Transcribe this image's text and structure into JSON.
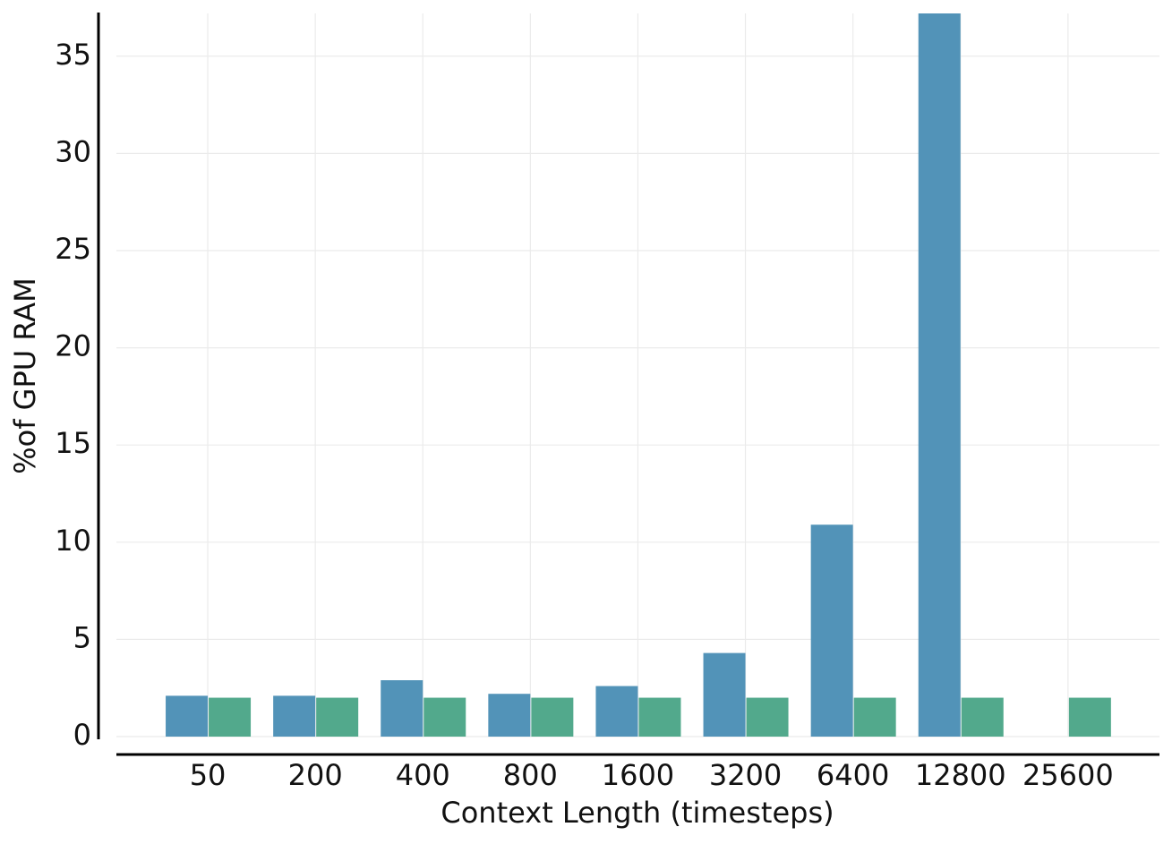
{
  "chart_data": {
    "type": "bar",
    "xlabel": "Context Length (timesteps)",
    "ylabel": "%of GPU RAM",
    "categories": [
      "50",
      "200",
      "400",
      "800",
      "1600",
      "3200",
      "6400",
      "12800",
      "25600"
    ],
    "series": [
      {
        "color": "#5293b8",
        "values": [
          2.1,
          2.1,
          2.9,
          2.2,
          2.6,
          4.3,
          10.9,
          37.2,
          null
        ]
      },
      {
        "color": "#52a98c",
        "values": [
          2.0,
          2.0,
          2.0,
          2.0,
          2.0,
          2.0,
          2.0,
          2.0,
          2.0
        ]
      }
    ],
    "ylim": [
      0,
      37.2
    ],
    "yticks": [
      0,
      5,
      10,
      15,
      20,
      25,
      30,
      35
    ],
    "grid": true
  }
}
